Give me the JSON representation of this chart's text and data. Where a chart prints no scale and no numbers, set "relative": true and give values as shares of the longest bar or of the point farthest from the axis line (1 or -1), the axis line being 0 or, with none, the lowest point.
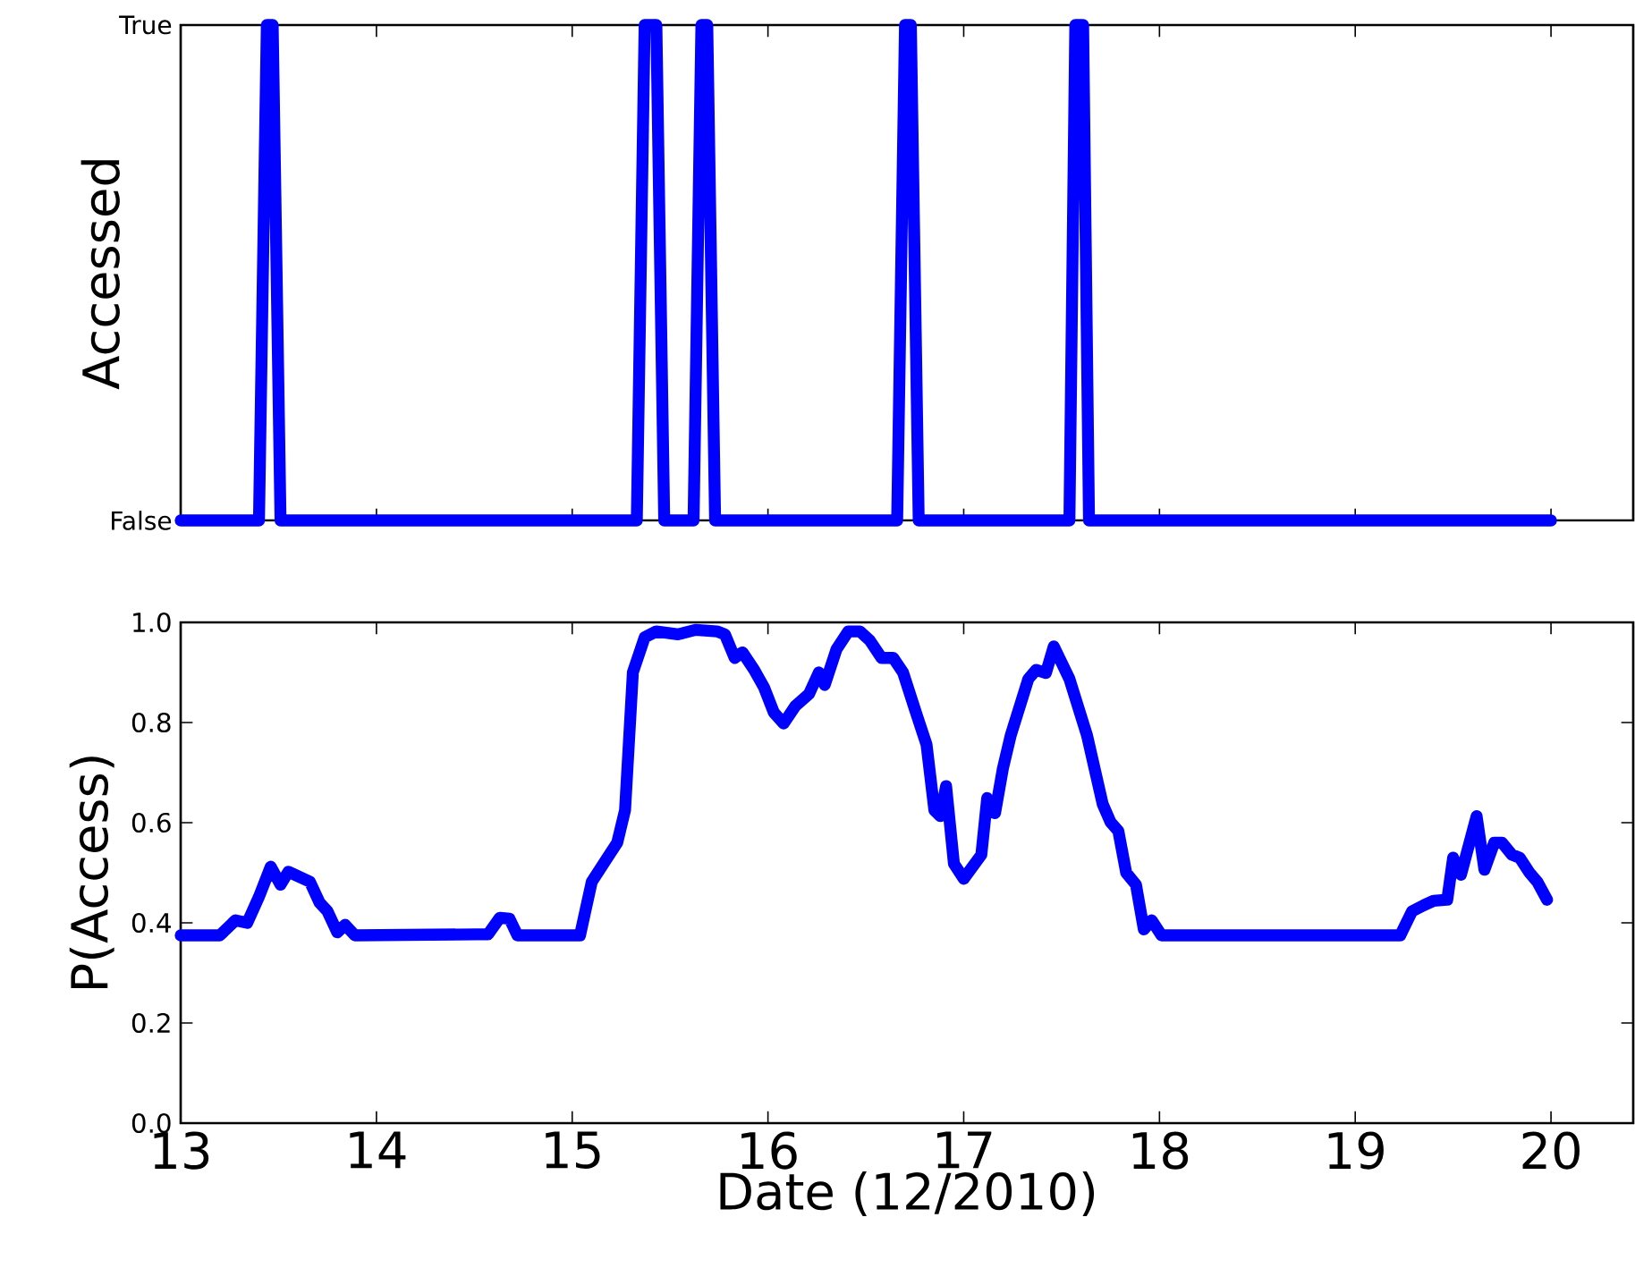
{
  "chart_data": [
    {
      "type": "line",
      "ylabel": "Accessed",
      "color": "#0000ff",
      "tick_labels": false,
      "xlim": [
        13,
        20.42
      ],
      "xticks": [
        13,
        14,
        15,
        16,
        17,
        18,
        19,
        20
      ],
      "relative": true,
      "annotations": [
        "True",
        "False"
      ],
      "x": [
        13,
        13.4,
        13.44,
        13.47,
        13.51,
        15.33,
        15.37,
        15.43,
        15.47,
        15.62,
        15.66,
        15.69,
        15.73,
        16.66,
        16.7,
        16.73,
        16.77,
        17.54,
        17.57,
        17.61,
        17.64,
        20.0
      ],
      "values": [
        0,
        0,
        1,
        1,
        0,
        0,
        1,
        1,
        0,
        0,
        1,
        1,
        0,
        0,
        1,
        1,
        0,
        0,
        1,
        1,
        0,
        0
      ]
    },
    {
      "type": "line",
      "ylabel": "P(Access)",
      "xlabel": "Date (12/2010)",
      "color": "#0000ff",
      "xlim": [
        13,
        20.42
      ],
      "xticks": [
        13,
        14,
        15,
        16,
        17,
        18,
        19,
        20
      ],
      "ylim": [
        0,
        1
      ],
      "yticks": [
        {
          "value": 0,
          "label": "0.0"
        },
        {
          "value": 0.2,
          "label": "0.2"
        },
        {
          "value": 0.4,
          "label": "0.4"
        },
        {
          "value": 0.6,
          "label": "0.6"
        },
        {
          "value": 0.8,
          "label": "0.8"
        },
        {
          "value": 1,
          "label": "1.0"
        }
      ],
      "x": [
        13.0,
        13.2,
        13.28,
        13.34,
        13.4,
        13.46,
        13.51,
        13.55,
        13.66,
        13.71,
        13.75,
        13.8,
        13.84,
        13.89,
        14.51,
        14.57,
        14.63,
        14.68,
        14.72,
        15.04,
        15.1,
        15.16,
        15.23,
        15.27,
        15.31,
        15.37,
        15.43,
        15.54,
        15.63,
        15.74,
        15.78,
        15.83,
        15.87,
        15.93,
        15.98,
        16.03,
        16.08,
        16.14,
        16.21,
        16.26,
        16.29,
        16.35,
        16.41,
        16.47,
        16.52,
        16.58,
        16.64,
        16.69,
        16.76,
        16.81,
        16.85,
        16.88,
        16.91,
        16.95,
        17.0,
        17.09,
        17.12,
        17.16,
        17.2,
        17.24,
        17.33,
        17.37,
        17.42,
        17.46,
        17.54,
        17.63,
        17.71,
        17.75,
        17.79,
        17.83,
        17.88,
        17.92,
        17.96,
        18.01,
        19.23,
        19.29,
        19.35,
        19.4,
        19.47,
        19.5,
        19.54,
        19.62,
        19.66,
        19.71,
        19.75,
        19.8,
        19.84,
        19.89,
        19.93,
        19.98
      ],
      "values": [
        0.375,
        0.375,
        0.405,
        0.4,
        0.452,
        0.512,
        0.476,
        0.502,
        0.482,
        0.44,
        0.423,
        0.381,
        0.396,
        0.375,
        0.377,
        0.377,
        0.41,
        0.408,
        0.375,
        0.375,
        0.482,
        0.518,
        0.56,
        0.625,
        0.9,
        0.97,
        0.982,
        0.976,
        0.985,
        0.982,
        0.976,
        0.929,
        0.94,
        0.905,
        0.87,
        0.82,
        0.798,
        0.833,
        0.857,
        0.9,
        0.875,
        0.946,
        0.982,
        0.982,
        0.964,
        0.929,
        0.929,
        0.9,
        0.815,
        0.756,
        0.625,
        0.613,
        0.673,
        0.518,
        0.488,
        0.536,
        0.649,
        0.619,
        0.708,
        0.774,
        0.887,
        0.905,
        0.899,
        0.952,
        0.887,
        0.774,
        0.637,
        0.601,
        0.583,
        0.5,
        0.476,
        0.387,
        0.405,
        0.375,
        0.375,
        0.423,
        0.435,
        0.444,
        0.446,
        0.53,
        0.496,
        0.613,
        0.506,
        0.56,
        0.56,
        0.536,
        0.53,
        0.5,
        0.482,
        0.446
      ]
    }
  ]
}
